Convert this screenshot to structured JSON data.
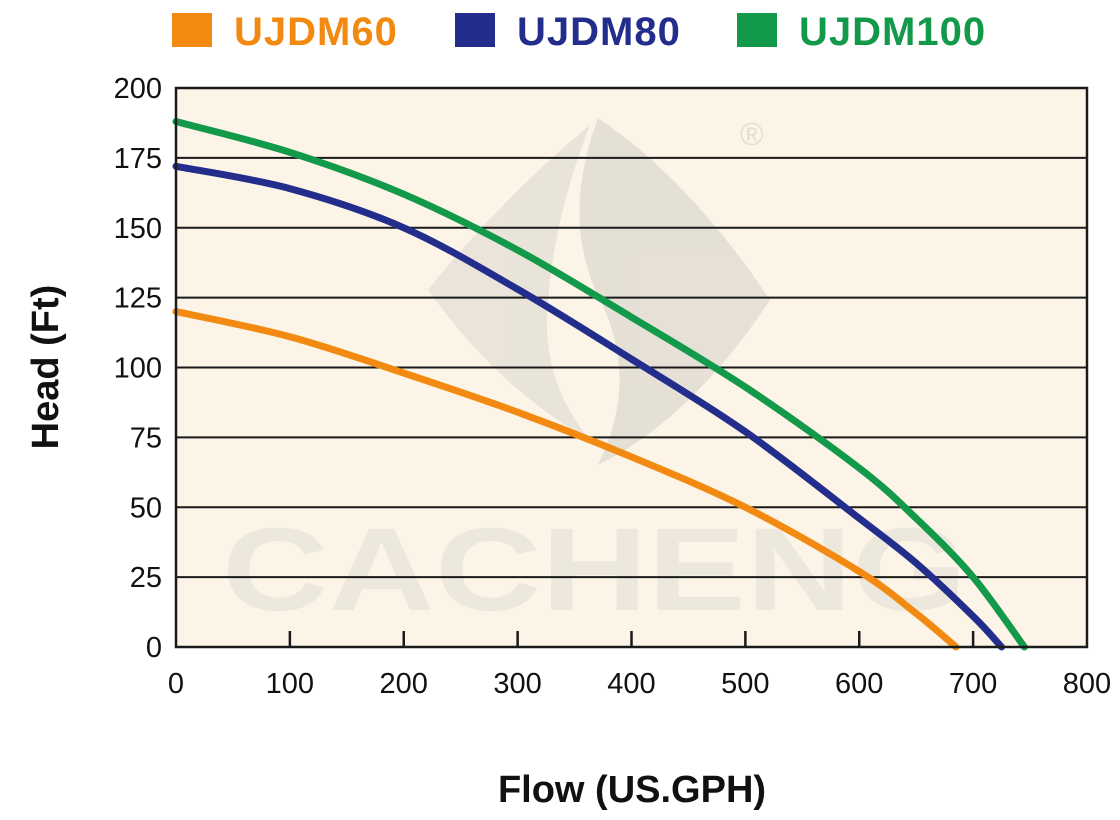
{
  "chart_data": {
    "type": "line",
    "title": "",
    "xlabel": "Flow (US.GPH)",
    "ylabel": "Head (Ft)",
    "xlim": [
      0,
      800
    ],
    "ylim": [
      0,
      200
    ],
    "x_ticks": [
      "0",
      "100",
      "200",
      "300",
      "400",
      "500",
      "600",
      "700",
      "800"
    ],
    "y_ticks": [
      "200",
      "175",
      "150",
      "125",
      "100",
      "75",
      "50",
      "25",
      "0"
    ],
    "grid": "horizontal",
    "background_color": "#fcf4e6",
    "legend_position": "top",
    "series": [
      {
        "name": "UJDM60",
        "color": "#f28a12",
        "x": [
          0,
          100,
          200,
          300,
          400,
          500,
          600,
          650,
          685
        ],
        "y": [
          120,
          111,
          98,
          84,
          68,
          50,
          27,
          12,
          0
        ]
      },
      {
        "name": "UJDM80",
        "color": "#232d8c",
        "x": [
          0,
          100,
          200,
          300,
          400,
          500,
          600,
          650,
          700,
          725
        ],
        "y": [
          172,
          164,
          150,
          128,
          103,
          77,
          46,
          30,
          11,
          0
        ]
      },
      {
        "name": "UJDM100",
        "color": "#13994a",
        "x": [
          0,
          100,
          200,
          300,
          400,
          500,
          600,
          650,
          700,
          745
        ],
        "y": [
          188,
          177,
          162,
          142,
          118,
          93,
          64,
          46,
          25,
          0
        ]
      }
    ]
  },
  "watermark": {
    "brand_text": "CACHENG",
    "registered_mark": "®"
  }
}
